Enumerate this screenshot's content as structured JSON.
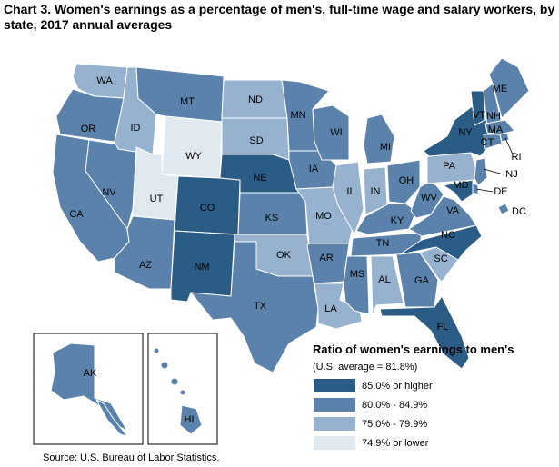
{
  "title": "Chart 3. Women's earnings as a percentage of men's, full-time wage and salary workers, by state, 2017 annual averages",
  "colors": {
    "c85": "#2b5c86",
    "c80": "#5a82ab",
    "c75": "#97b2cf",
    "c74": "#dfe9ef",
    "background": "#ffffff"
  },
  "legend": {
    "title": "Ratio of women's earnings to men's",
    "subtitle": "(U.S. average = 81.8%)",
    "items": [
      {
        "label": "85.0% or higher",
        "class": "c85"
      },
      {
        "label": "80.0% - 84.9%",
        "class": "c80"
      },
      {
        "label": "75.0% - 79.9%",
        "class": "c75"
      },
      {
        "label": "74.9% or lower",
        "class": "c74"
      }
    ]
  },
  "source": "Source: U.S. Bureau of Labor Statistics.",
  "states": {
    "WA": "c75",
    "OR": "c80",
    "CA": "c80",
    "NV": "c80",
    "ID": "c75",
    "MT": "c80",
    "WY": "c74",
    "UT": "c74",
    "AZ": "c80",
    "CO": "c85",
    "NM": "c85",
    "ND": "c75",
    "SD": "c75",
    "NE": "c85",
    "KS": "c80",
    "OK": "c75",
    "TX": "c80",
    "MN": "c80",
    "IA": "c80",
    "MO": "c75",
    "AR": "c80",
    "LA": "c75",
    "WI": "c80",
    "IL": "c75",
    "MS": "c80",
    "MI": "c80",
    "IN": "c75",
    "KY": "c80",
    "TN": "c80",
    "AL": "c75",
    "OH": "c80",
    "GA": "c80",
    "FL": "c85",
    "SC": "c75",
    "NC": "c85",
    "VA": "c80",
    "WV": "c80",
    "PA": "c75",
    "NY": "c85",
    "VT": "c85",
    "NH": "c80",
    "ME": "c80",
    "MA": "c80",
    "RI": "c80",
    "CT": "c80",
    "NJ": "c80",
    "DE": "c80",
    "MD": "c85",
    "DC": "c80",
    "AK": "c80",
    "HI": "c80"
  },
  "state_labels": {
    "WA": "WA",
    "OR": "OR",
    "CA": "CA",
    "NV": "NV",
    "ID": "ID",
    "MT": "MT",
    "WY": "WY",
    "UT": "UT",
    "AZ": "AZ",
    "CO": "CO",
    "NM": "NM",
    "ND": "ND",
    "SD": "SD",
    "NE": "NE",
    "KS": "KS",
    "OK": "OK",
    "TX": "TX",
    "MN": "MN",
    "IA": "IA",
    "MO": "MO",
    "AR": "AR",
    "LA": "LA",
    "WI": "WI",
    "IL": "IL",
    "MS": "MS",
    "MI": "MI",
    "IN": "IN",
    "KY": "KY",
    "TN": "TN",
    "AL": "AL",
    "OH": "OH",
    "GA": "GA",
    "FL": "FL",
    "SC": "SC",
    "NC": "NC",
    "VA": "VA",
    "WV": "WV",
    "PA": "PA",
    "NY": "NY",
    "VT": "VT",
    "NH": "NH",
    "ME": "ME",
    "MA": "MA",
    "RI": "RI",
    "CT": "CT",
    "NJ": "NJ",
    "DE": "DE",
    "MD": "MD",
    "DC": "DC",
    "AK": "AK",
    "HI": "HI"
  }
}
